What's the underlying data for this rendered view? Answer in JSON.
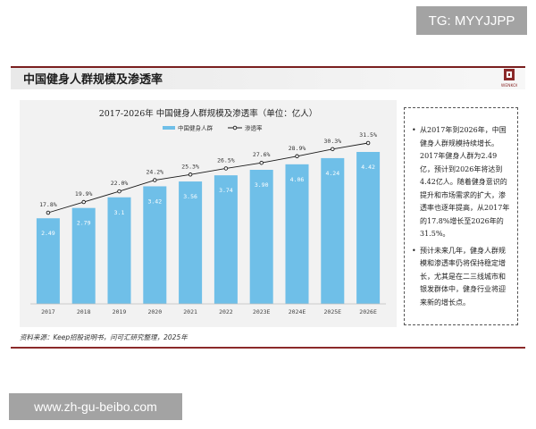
{
  "watermarks": {
    "top": "TG: MYYJJPP",
    "bottom": "www.zh-gu-beibo.com"
  },
  "header": {
    "title": "中国健身人群规模及渗透率",
    "logo_text": "WENKOI"
  },
  "colors": {
    "bar": "#6fbfe8",
    "line": "#1a1a1a",
    "accent": "#8b2a2a",
    "band": "#7a1f1f"
  },
  "chart_data": {
    "type": "bar",
    "title": "2017-2026年 中国健身人群规模及渗透率（单位：亿人）",
    "categories": [
      "2017",
      "2018",
      "2019",
      "2020",
      "2021",
      "2022",
      "2023E",
      "2024E",
      "2025E",
      "2026E"
    ],
    "series": [
      {
        "name": "中国健身人群",
        "type": "bar",
        "values": [
          2.49,
          2.79,
          3.1,
          3.42,
          3.56,
          3.74,
          3.9,
          4.06,
          4.24,
          4.42
        ],
        "labels": [
          "2.49",
          "2.79",
          "3.1",
          "3.42",
          "3.56",
          "3.74",
          "3.90",
          "4.06",
          "4.24",
          "4.42"
        ]
      },
      {
        "name": "渗透率",
        "type": "line",
        "values": [
          17.8,
          19.9,
          22.0,
          24.2,
          25.3,
          26.5,
          27.6,
          28.9,
          30.3,
          31.5
        ],
        "labels": [
          "17.8%",
          "19.9%",
          "22.0%",
          "24.2%",
          "25.3%",
          "26.5%",
          "27.6%",
          "28.9%",
          "30.3%",
          "31.5%"
        ]
      }
    ],
    "bar_ylim": [
      0,
      5
    ],
    "line_ylim": [
      0,
      35
    ],
    "legend_position": "top-center",
    "grid": false
  },
  "notes": [
    "从2017年到2026年，中国健身人群规模持续增长。2017年健身人群为2.49亿，预计到2026年将达到4.42亿人。随着健身意识的提升和市场需求的扩大，渗透率也逐年提高，从2017年的17.8%增长至2026年的31.5%。",
    "预计未来几年，健身人群规模和渗透率仍将保持稳定增长，尤其是在二三线城市和银发群体中，健身行业将迎来新的增长点。"
  ],
  "source": "资料来源：Keep招股说明书，问可汇研究整理，2025年"
}
